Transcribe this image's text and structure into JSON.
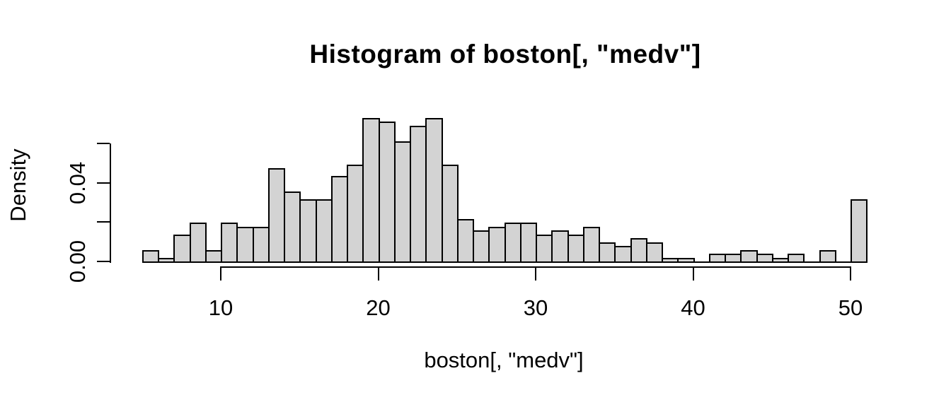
{
  "figure": {
    "title": "Histogram of boston[, \"medv\"]",
    "x_axis_label": "boston[, \"medv\"]",
    "y_axis_label": "Density"
  },
  "chart_data": {
    "type": "bar",
    "subtype": "histogram",
    "title": "Histogram of boston[, \"medv\"]",
    "xlabel": "boston[, \"medv\"]",
    "ylabel": "Density",
    "bin_width": 1,
    "bin_edges": [
      5,
      6,
      7,
      8,
      9,
      10,
      11,
      12,
      13,
      14,
      15,
      16,
      17,
      18,
      19,
      20,
      21,
      22,
      23,
      24,
      25,
      26,
      27,
      28,
      29,
      30,
      31,
      32,
      33,
      34,
      35,
      36,
      37,
      38,
      39,
      40,
      41,
      42,
      43,
      44,
      45,
      46,
      47,
      48,
      49,
      50,
      51
    ],
    "counts": [
      3,
      1,
      7,
      10,
      3,
      10,
      9,
      9,
      24,
      18,
      16,
      16,
      22,
      25,
      37,
      36,
      31,
      35,
      37,
      25,
      11,
      8,
      9,
      10,
      10,
      7,
      8,
      7,
      9,
      5,
      4,
      6,
      5,
      1,
      1,
      0,
      2,
      2,
      3,
      2,
      1,
      2,
      0,
      3,
      0,
      16
    ],
    "densities": [
      0.005929,
      0.001976,
      0.013834,
      0.019763,
      0.005929,
      0.019763,
      0.017787,
      0.017787,
      0.047431,
      0.035573,
      0.031621,
      0.031621,
      0.043478,
      0.049407,
      0.073123,
      0.071146,
      0.061265,
      0.06917,
      0.073123,
      0.049407,
      0.021739,
      0.01581,
      0.017787,
      0.019763,
      0.019763,
      0.013834,
      0.01581,
      0.013834,
      0.017787,
      0.009881,
      0.007905,
      0.011858,
      0.009881,
      0.001976,
      0.001976,
      0,
      0.003953,
      0.003953,
      0.005929,
      0.003953,
      0.001976,
      0.003953,
      0,
      0.005929,
      0,
      0.031621
    ],
    "x_ticks": [
      10,
      20,
      30,
      40,
      50
    ],
    "y_ticks": [
      {
        "value": 0.0,
        "label": "0.00"
      },
      {
        "value": 0.02,
        "label": ""
      },
      {
        "value": 0.04,
        "label": "0.04"
      },
      {
        "value": 0.06,
        "label": ""
      }
    ],
    "xlim": [
      5,
      51
    ],
    "ylim": [
      0,
      0.0735
    ],
    "grid": false,
    "legend": false,
    "bar_fill_color": "#d3d3d3",
    "bar_border_color": "#000000",
    "text_color": "#000000",
    "background_color": "#ffffff"
  }
}
